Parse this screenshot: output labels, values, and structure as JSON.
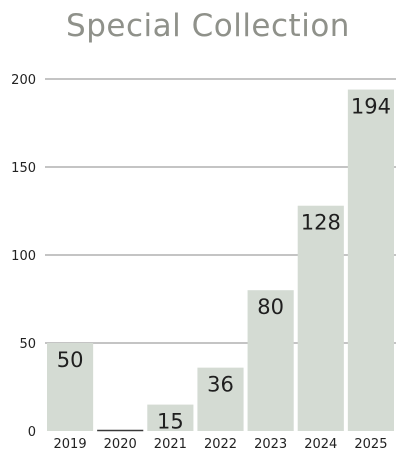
{
  "chart_data": {
    "type": "bar",
    "title": "Special Collection",
    "xlabel": "",
    "ylabel": "",
    "categories": [
      "2019",
      "2020",
      "2021",
      "2022",
      "2023",
      "2024",
      "2025"
    ],
    "values": [
      50,
      0,
      15,
      36,
      80,
      128,
      194
    ],
    "data_labels": [
      "50",
      "",
      "15",
      "36",
      "80",
      "128",
      "194"
    ],
    "ylim": [
      0,
      200
    ],
    "yticks": [
      "0",
      "50",
      "100",
      "150",
      "200"
    ],
    "grid": true,
    "legend": "none",
    "colors": {
      "bar": "#d4dbd3",
      "title": "#8f918a",
      "grid": "#8a8a8a",
      "baseline": "#3a3a3a"
    }
  }
}
